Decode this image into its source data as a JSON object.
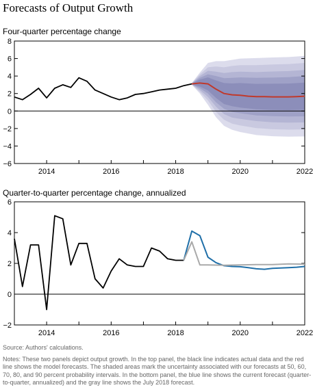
{
  "title": "Forecasts of Output Growth",
  "chart_data": [
    {
      "type": "line",
      "subtitle": "Four-quarter percentage change",
      "xlim": [
        2013,
        2022
      ],
      "ylim": [
        -6,
        8
      ],
      "xticks": [
        "2014",
        "2016",
        "2018",
        "2020",
        "2022"
      ],
      "yticks": [
        "8",
        "6",
        "4",
        "2",
        "0",
        "−2",
        "−4",
        "−6"
      ],
      "grid": false,
      "series": [
        {
          "role": "actual",
          "color": "#000000",
          "x": [
            2013.0,
            2013.25,
            2013.5,
            2013.75,
            2014.0,
            2014.25,
            2014.5,
            2014.75,
            2015.0,
            2015.25,
            2015.5,
            2015.75,
            2016.0,
            2016.25,
            2016.5,
            2016.75,
            2017.0,
            2017.25,
            2017.5,
            2017.75,
            2018.0,
            2018.25,
            2018.5
          ],
          "y": [
            1.6,
            1.3,
            1.9,
            2.6,
            1.5,
            2.6,
            3.0,
            2.7,
            3.8,
            3.4,
            2.4,
            2.0,
            1.6,
            1.3,
            1.5,
            1.9,
            2.0,
            2.2,
            2.4,
            2.5,
            2.6,
            2.9,
            3.1
          ]
        },
        {
          "role": "forecast",
          "color": "#c0392b",
          "x": [
            2018.5,
            2018.75,
            2019.0,
            2019.25,
            2019.5,
            2019.75,
            2020.0,
            2020.25,
            2020.5,
            2020.75,
            2021.0,
            2021.25,
            2021.5,
            2021.75,
            2022.0
          ],
          "y": [
            3.1,
            3.2,
            3.1,
            2.5,
            2.0,
            1.85,
            1.8,
            1.7,
            1.65,
            1.65,
            1.62,
            1.62,
            1.62,
            1.65,
            1.7
          ]
        }
      ],
      "bands": {
        "colors": [
          "#dcdcec",
          "#c9c9e0",
          "#b4b5d4",
          "#9fa1c7",
          "#8c8eba"
        ],
        "probabilities": [
          90,
          80,
          70,
          60,
          50
        ],
        "x": [
          2018.5,
          2018.75,
          2019.0,
          2019.25,
          2019.5,
          2019.75,
          2020.0,
          2020.5,
          2021.0,
          2021.5,
          2022.0
        ],
        "halfwidths": [
          [
            0.1,
            1.2,
            2.4,
            3.2,
            3.7,
            4.0,
            4.2,
            4.4,
            4.5,
            4.55,
            4.6
          ],
          [
            0.08,
            1.0,
            1.9,
            2.6,
            3.0,
            3.3,
            3.45,
            3.6,
            3.7,
            3.75,
            3.8
          ],
          [
            0.06,
            0.8,
            1.5,
            2.0,
            2.35,
            2.6,
            2.7,
            2.8,
            2.9,
            2.95,
            3.0
          ],
          [
            0.05,
            0.6,
            1.1,
            1.5,
            1.75,
            1.95,
            2.05,
            2.15,
            2.2,
            2.25,
            2.3
          ],
          [
            0.04,
            0.4,
            0.75,
            1.0,
            1.2,
            1.3,
            1.4,
            1.45,
            1.5,
            1.52,
            1.55
          ]
        ]
      }
    },
    {
      "type": "line",
      "subtitle": "Quarter-to-quarter percentage change, annualized",
      "xlim": [
        2013,
        2022
      ],
      "ylim": [
        -2,
        6
      ],
      "xticks": [
        "2014",
        "2016",
        "2018",
        "2020",
        "2022"
      ],
      "yticks": [
        "6",
        "4",
        "2",
        "0",
        "−2"
      ],
      "grid": false,
      "series": [
        {
          "role": "actual",
          "color": "#000000",
          "x": [
            2013.0,
            2013.25,
            2013.5,
            2013.75,
            2014.0,
            2014.25,
            2014.5,
            2014.75,
            2015.0,
            2015.25,
            2015.5,
            2015.75,
            2016.0,
            2016.25,
            2016.5,
            2016.75,
            2017.0,
            2017.25,
            2017.5,
            2017.75,
            2018.0,
            2018.25
          ],
          "y": [
            3.6,
            0.5,
            3.2,
            3.2,
            -1.0,
            5.1,
            4.9,
            1.9,
            3.3,
            3.3,
            1.0,
            0.4,
            1.5,
            2.3,
            1.9,
            1.8,
            1.8,
            3.0,
            2.8,
            2.3,
            2.2,
            2.2
          ]
        },
        {
          "role": "current forecast",
          "color": "#1f6fa8",
          "x": [
            2018.25,
            2018.5,
            2018.75,
            2019.0,
            2019.25,
            2019.5,
            2019.75,
            2020.0,
            2020.25,
            2020.5,
            2020.75,
            2021.0,
            2021.25,
            2021.5,
            2021.75,
            2022.0
          ],
          "y": [
            2.2,
            4.1,
            3.8,
            2.4,
            2.05,
            1.85,
            1.8,
            1.78,
            1.72,
            1.65,
            1.62,
            1.68,
            1.7,
            1.72,
            1.75,
            1.8
          ]
        },
        {
          "role": "July 2018 forecast",
          "color": "#a9a9a9",
          "x": [
            2018.25,
            2018.5,
            2018.75,
            2019.0,
            2019.5,
            2020.0,
            2020.5,
            2021.0,
            2021.5,
            2022.0
          ],
          "y": [
            2.2,
            3.4,
            1.9,
            1.9,
            1.88,
            1.9,
            1.92,
            1.92,
            1.97,
            1.95
          ]
        }
      ]
    }
  ],
  "source": "Source: Authors' calculations.",
  "notes": "Notes: These two panels depict output growth. In the top panel, the black line indicates actual data and the red line shows the model forecasts. The shaded areas mark the uncertainty associated with our forecasts at 50, 60, 70, 80, and 90 percent probability intervals. In the bottom panel, the blue line shows the current forecast (quarter-to-quarter, annualized) and the gray line shows the July 2018 forecast."
}
